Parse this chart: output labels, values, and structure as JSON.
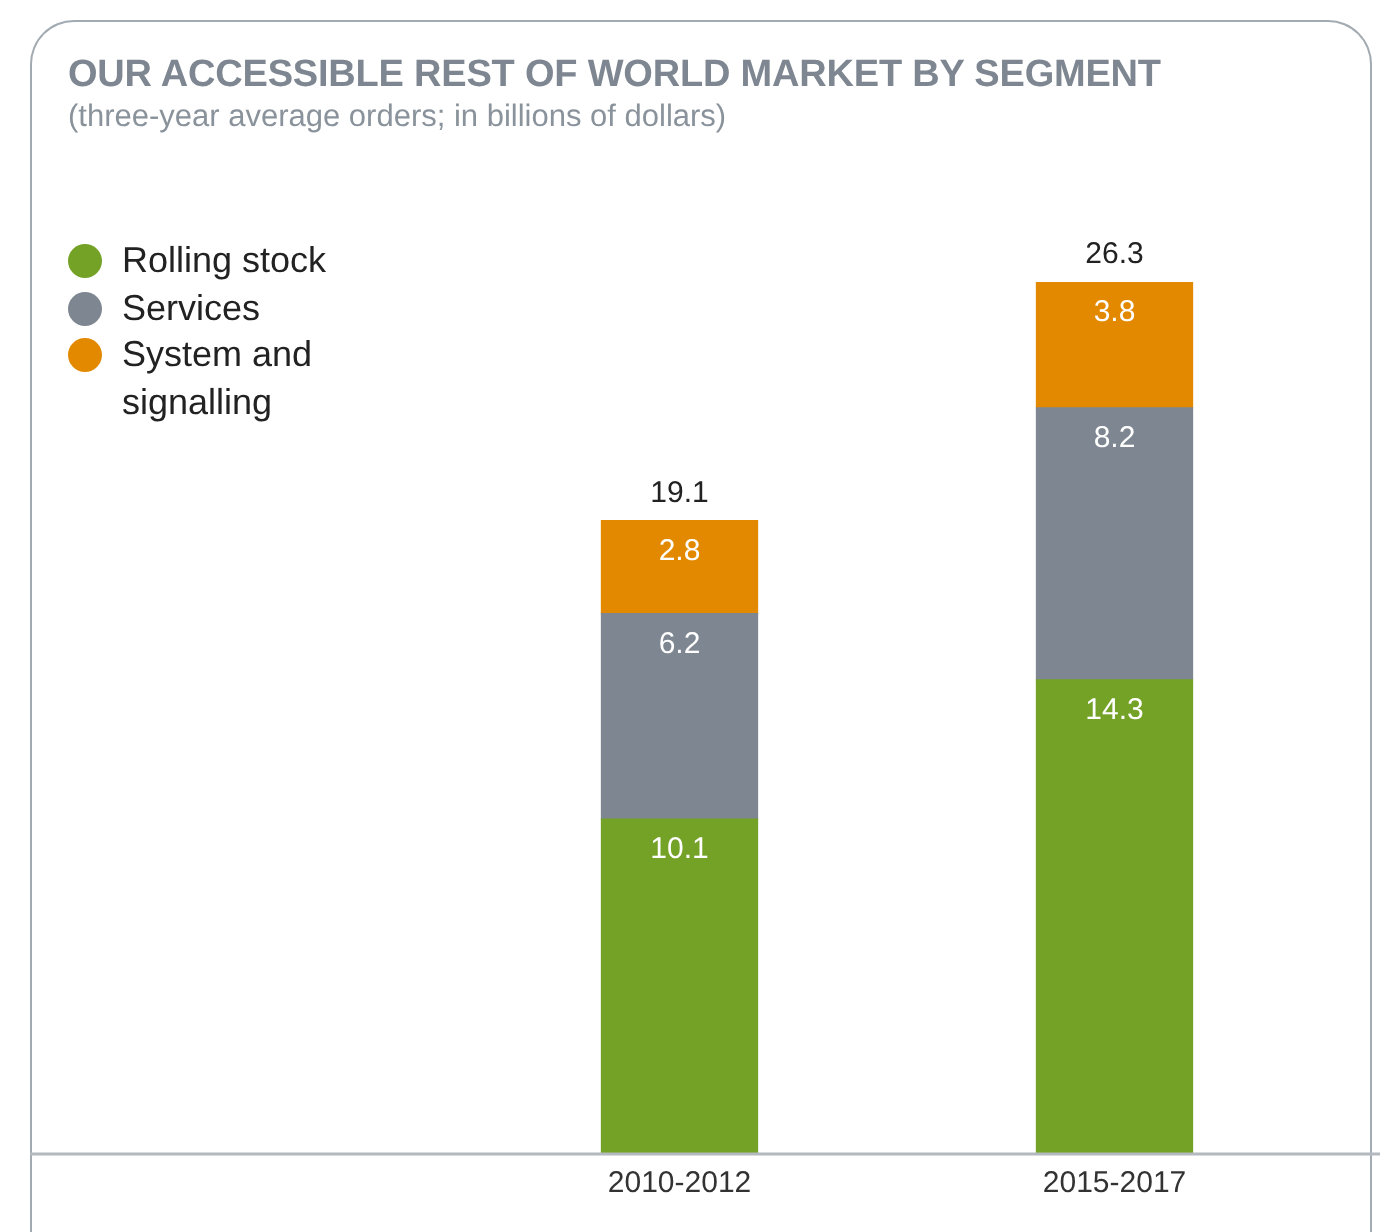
{
  "chart_data": {
    "type": "bar",
    "title": "OUR ACCESSIBLE REST OF WORLD MARKET BY SEGMENT",
    "subtitle": "(three-year average orders; in billions of dollars)",
    "categories": [
      "2010-2012",
      "2015-2017"
    ],
    "stacked": true,
    "series": [
      {
        "name": "Rolling stock",
        "color": "#74a227",
        "values": [
          10.1,
          14.3
        ]
      },
      {
        "name": "Services",
        "color": "#7e8791",
        "values": [
          6.2,
          8.2
        ]
      },
      {
        "name": "System and signalling",
        "color": "#e38900",
        "values": [
          2.8,
          3.8
        ]
      }
    ],
    "data_labels": true,
    "totals": [
      "19.1",
      "26.3"
    ],
    "legend": "top left",
    "grid": false,
    "tick_labels": "x"
  }
}
